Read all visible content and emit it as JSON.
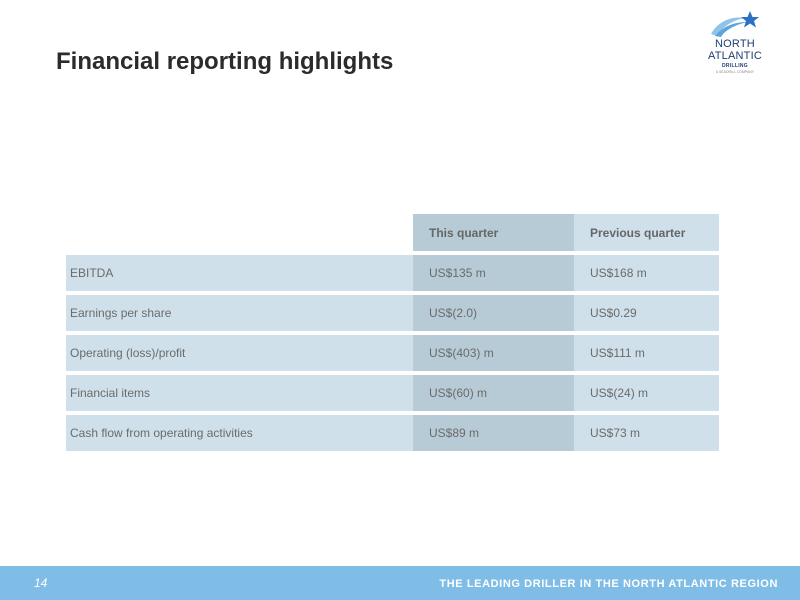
{
  "slide": {
    "title": "Financial reporting highlights",
    "page_number": "14"
  },
  "logo": {
    "line1": "NORTH",
    "line2": "ATLANTIC",
    "line3": "DRILLING",
    "line4": "A SEADRILL COMPANY",
    "colors": {
      "star": "#2a73c4",
      "swoosh": "#8fc4e8",
      "text": "#1f3d73"
    }
  },
  "table": {
    "columns": [
      "",
      "This quarter",
      "Previous quarter"
    ],
    "rows": [
      {
        "label": "EBITDA",
        "this_quarter": "US$135 m",
        "previous_quarter": "US$168 m"
      },
      {
        "label": "Earnings per share",
        "this_quarter": "US$(2.0)",
        "previous_quarter": "US$0.29"
      },
      {
        "label": "Operating (loss)/profit",
        "this_quarter": "US$(403) m",
        "previous_quarter": "US$111 m"
      },
      {
        "label": "Financial items",
        "this_quarter": "US$(60) m",
        "previous_quarter": "US$(24) m"
      },
      {
        "label": "Cash flow from operating activities",
        "this_quarter": "US$89 m",
        "previous_quarter": "US$73 m"
      }
    ]
  },
  "footer": {
    "tagline": "THE LEADING DRILLER IN THE NORTH ATLANTIC REGION"
  },
  "colors": {
    "footer_bar": "#7fbde6",
    "row_light": "#cfe0ea",
    "row_dark": "#b7cbd6",
    "title_text": "#2b2b2b"
  }
}
